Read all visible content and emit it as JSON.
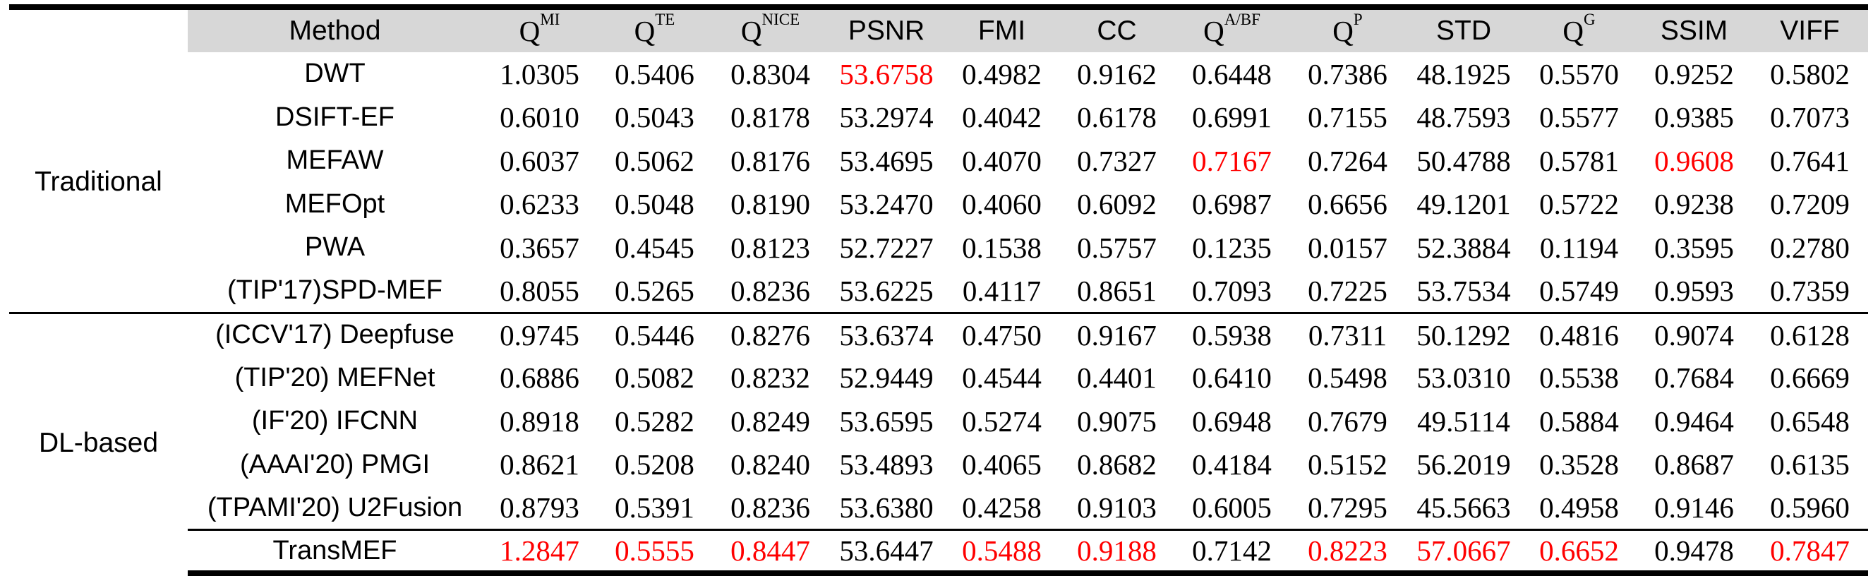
{
  "headers": {
    "method": "Method",
    "columns": [
      {
        "base": "Q",
        "sup": "MI"
      },
      {
        "base": "Q",
        "sup": "TE"
      },
      {
        "base": "Q",
        "sup": "NICE"
      },
      {
        "base": "PSNR",
        "sup": ""
      },
      {
        "base": "FMI",
        "sup": ""
      },
      {
        "base": "CC",
        "sup": ""
      },
      {
        "base": "Q",
        "sup": "A/BF"
      },
      {
        "base": "Q",
        "sup": "P"
      },
      {
        "base": "STD",
        "sup": ""
      },
      {
        "base": "Q",
        "sup": "G"
      },
      {
        "base": "SSIM",
        "sup": ""
      },
      {
        "base": "VIFF",
        "sup": ""
      }
    ]
  },
  "groups": {
    "traditional": "Traditional",
    "dl": "DL-based"
  },
  "highlight_color": "#ff0000",
  "rows": [
    {
      "method": "DWT",
      "values": [
        "1.0305",
        "0.5406",
        "0.8304",
        "53.6758",
        "0.4982",
        "0.9162",
        "0.6448",
        "0.7386",
        "48.1925",
        "0.5570",
        "0.9252",
        "0.5802"
      ],
      "best": [
        false,
        false,
        false,
        true,
        false,
        false,
        false,
        false,
        false,
        false,
        false,
        false
      ]
    },
    {
      "method": "DSIFT-EF",
      "values": [
        "0.6010",
        "0.5043",
        "0.8178",
        "53.2974",
        "0.4042",
        "0.6178",
        "0.6991",
        "0.7155",
        "48.7593",
        "0.5577",
        "0.9385",
        "0.7073"
      ],
      "best": [
        false,
        false,
        false,
        false,
        false,
        false,
        false,
        false,
        false,
        false,
        false,
        false
      ]
    },
    {
      "method": "MEFAW",
      "values": [
        "0.6037",
        "0.5062",
        "0.8176",
        "53.4695",
        "0.4070",
        "0.7327",
        "0.7167",
        "0.7264",
        "50.4788",
        "0.5781",
        "0.9608",
        "0.7641"
      ],
      "best": [
        false,
        false,
        false,
        false,
        false,
        false,
        true,
        false,
        false,
        false,
        true,
        false
      ]
    },
    {
      "method": "MEFOpt",
      "values": [
        "0.6233",
        "0.5048",
        "0.8190",
        "53.2470",
        "0.4060",
        "0.6092",
        "0.6987",
        "0.6656",
        "49.1201",
        "0.5722",
        "0.9238",
        "0.7209"
      ],
      "best": [
        false,
        false,
        false,
        false,
        false,
        false,
        false,
        false,
        false,
        false,
        false,
        false
      ]
    },
    {
      "method": "PWA",
      "values": [
        "0.3657",
        "0.4545",
        "0.8123",
        "52.7227",
        "0.1538",
        "0.5757",
        "0.1235",
        "0.0157",
        "52.3884",
        "0.1194",
        "0.3595",
        "0.2780"
      ],
      "best": [
        false,
        false,
        false,
        false,
        false,
        false,
        false,
        false,
        false,
        false,
        false,
        false
      ]
    },
    {
      "method": "(TIP'17)SPD-MEF",
      "values": [
        "0.8055",
        "0.5265",
        "0.8236",
        "53.6225",
        "0.4117",
        "0.8651",
        "0.7093",
        "0.7225",
        "53.7534",
        "0.5749",
        "0.9593",
        "0.7359"
      ],
      "best": [
        false,
        false,
        false,
        false,
        false,
        false,
        false,
        false,
        false,
        false,
        false,
        false
      ]
    },
    {
      "method": "(ICCV'17) Deepfuse",
      "values": [
        "0.9745",
        "0.5446",
        "0.8276",
        "53.6374",
        "0.4750",
        "0.9167",
        "0.5938",
        "0.7311",
        "50.1292",
        "0.4816",
        "0.9074",
        "0.6128"
      ],
      "best": [
        false,
        false,
        false,
        false,
        false,
        false,
        false,
        false,
        false,
        false,
        false,
        false
      ]
    },
    {
      "method": "(TIP'20) MEFNet",
      "values": [
        "0.6886",
        "0.5082",
        "0.8232",
        "52.9449",
        "0.4544",
        "0.4401",
        "0.6410",
        "0.5498",
        "53.0310",
        "0.5538",
        "0.7684",
        "0.6669"
      ],
      "best": [
        false,
        false,
        false,
        false,
        false,
        false,
        false,
        false,
        false,
        false,
        false,
        false
      ]
    },
    {
      "method": "(IF'20) IFCNN",
      "values": [
        "0.8918",
        "0.5282",
        "0.8249",
        "53.6595",
        "0.5274",
        "0.9075",
        "0.6948",
        "0.7679",
        "49.5114",
        "0.5884",
        "0.9464",
        "0.6548"
      ],
      "best": [
        false,
        false,
        false,
        false,
        false,
        false,
        false,
        false,
        false,
        false,
        false,
        false
      ]
    },
    {
      "method": "(AAAI'20) PMGI",
      "values": [
        "0.8621",
        "0.5208",
        "0.8240",
        "53.4893",
        "0.4065",
        "0.8682",
        "0.4184",
        "0.5152",
        "56.2019",
        "0.3528",
        "0.8687",
        "0.6135"
      ],
      "best": [
        false,
        false,
        false,
        false,
        false,
        false,
        false,
        false,
        false,
        false,
        false,
        false
      ]
    },
    {
      "method": "(TPAMI'20) U2Fusion",
      "values": [
        "0.8793",
        "0.5391",
        "0.8236",
        "53.6380",
        "0.4258",
        "0.9103",
        "0.6005",
        "0.7295",
        "45.5663",
        "0.4958",
        "0.9146",
        "0.5960"
      ],
      "best": [
        false,
        false,
        false,
        false,
        false,
        false,
        false,
        false,
        false,
        false,
        false,
        false
      ]
    },
    {
      "method": "TransMEF",
      "values": [
        "1.2847",
        "0.5555",
        "0.8447",
        "53.6447",
        "0.5488",
        "0.9188",
        "0.7142",
        "0.8223",
        "57.0667",
        "0.6652",
        "0.9478",
        "0.7847"
      ],
      "best": [
        true,
        true,
        true,
        false,
        true,
        true,
        false,
        true,
        true,
        true,
        false,
        true
      ]
    }
  ]
}
